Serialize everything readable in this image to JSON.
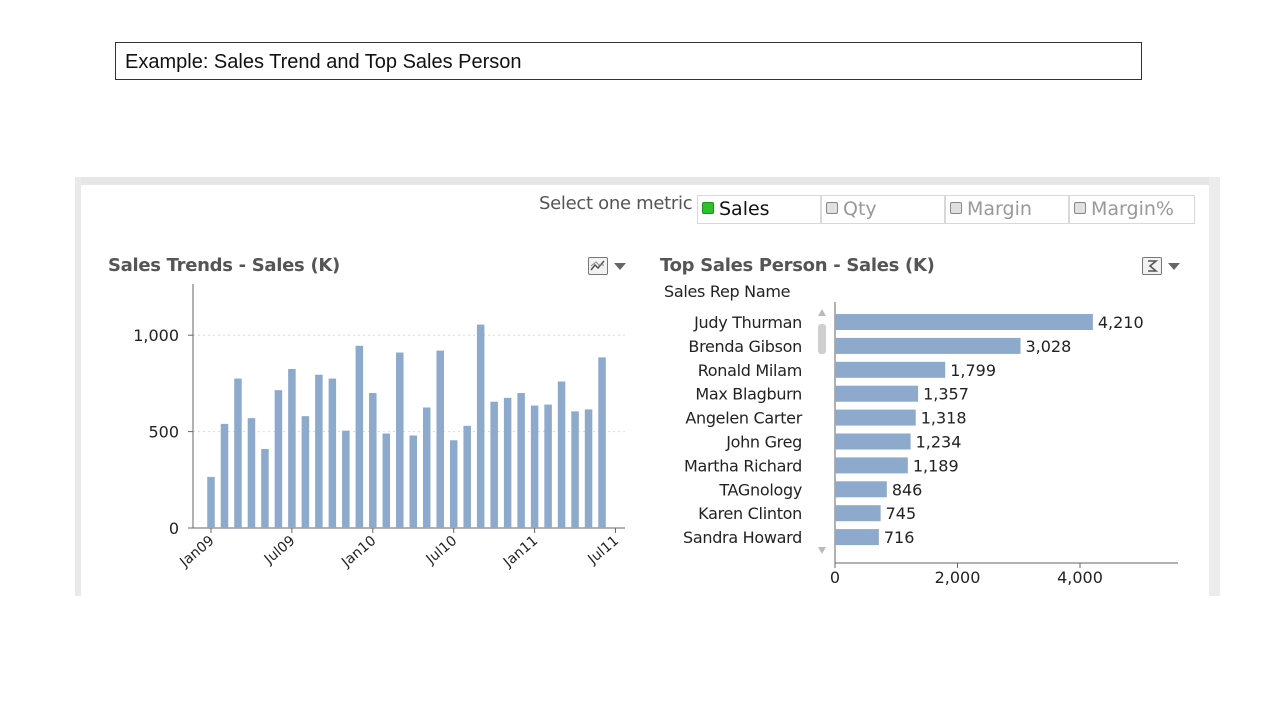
{
  "slide": {
    "title": "Example:  Sales Trend and Top Sales Person"
  },
  "metric_selector": {
    "label": "Select one metric",
    "options": [
      {
        "label": "Sales",
        "selected": true
      },
      {
        "label": "Qty",
        "selected": false
      },
      {
        "label": "Margin",
        "selected": false
      },
      {
        "label": "Margin%",
        "selected": false
      }
    ]
  },
  "colors": {
    "bar": "#8da9cc",
    "axis": "#666666",
    "grid": "#d9d9d9",
    "selected_dot": "#2bc22b"
  },
  "chart_data": [
    {
      "type": "bar",
      "title": "Sales Trends - Sales (K)",
      "orientation": "vertical",
      "x": [
        "Jan09",
        "Feb09",
        "Mar09",
        "Apr09",
        "May09",
        "Jun09",
        "Jul09",
        "Aug09",
        "Sep09",
        "Oct09",
        "Nov09",
        "Dec09",
        "Jan10",
        "Feb10",
        "Mar10",
        "Apr10",
        "May10",
        "Jun10",
        "Jul10",
        "Aug10",
        "Sep10",
        "Oct10",
        "Nov10",
        "Dec10",
        "Jan11",
        "Feb11",
        "Mar11",
        "Apr11",
        "May11",
        "Jun11",
        "Jul11"
      ],
      "values": [
        265,
        540,
        775,
        570,
        410,
        715,
        825,
        580,
        795,
        775,
        505,
        945,
        700,
        490,
        910,
        480,
        625,
        920,
        455,
        530,
        1055,
        655,
        675,
        700,
        635,
        640,
        760,
        605,
        615,
        885,
        0
      ],
      "x_tick_labels": [
        "Jan09",
        "Jul09",
        "Jan10",
        "Jul10",
        "Jan11",
        "Jul11"
      ],
      "y_ticks": [
        0,
        500,
        1000
      ],
      "y_tick_labels": [
        "0",
        "500",
        "1,000"
      ],
      "ylim": [
        0,
        1250
      ],
      "grid": true,
      "xlabel": "",
      "ylabel": ""
    },
    {
      "type": "bar",
      "title": "Top Sales Person - Sales (K)",
      "orientation": "horizontal",
      "dimension_label": "Sales Rep Name",
      "categories": [
        "Judy Thurman",
        "Brenda Gibson",
        "Ronald Milam",
        "Max Blagburn",
        "Angelen Carter",
        "John Greg",
        "Martha Richard",
        "TAGnology",
        "Karen Clinton",
        "Sandra Howard"
      ],
      "values": [
        4210,
        3028,
        1799,
        1357,
        1318,
        1234,
        1189,
        846,
        745,
        716
      ],
      "value_labels": [
        "4,210",
        "3,028",
        "1,799",
        "1,357",
        "1,318",
        "1,234",
        "1,189",
        "846",
        "745",
        "716"
      ],
      "x_ticks": [
        0,
        2000,
        4000
      ],
      "x_tick_labels": [
        "0",
        "2,000",
        "4,000"
      ],
      "xlim": [
        0,
        5600
      ],
      "grid": false,
      "xlabel": "",
      "ylabel": ""
    }
  ]
}
